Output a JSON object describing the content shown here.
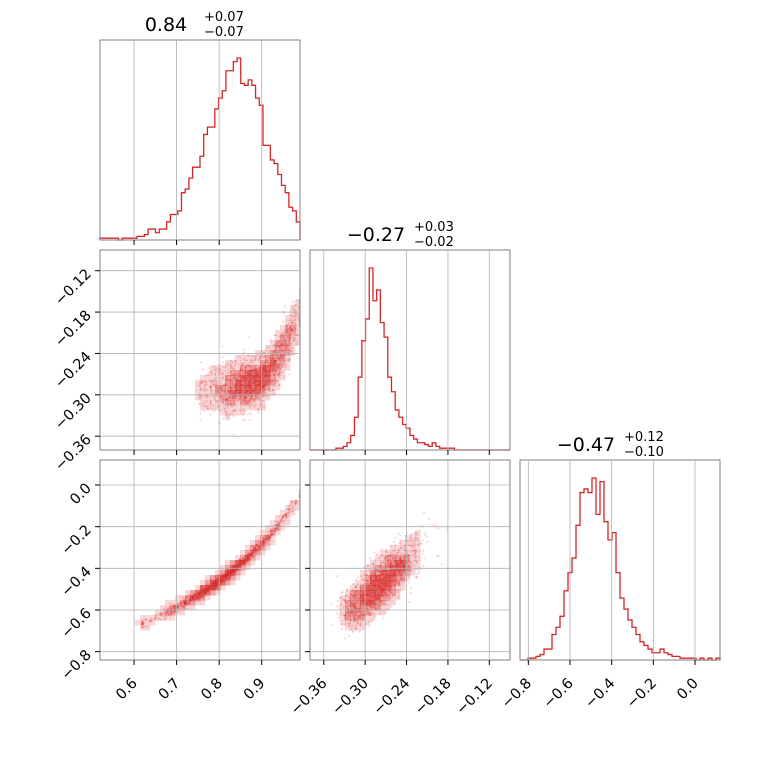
{
  "chart_data": {
    "type": "corner",
    "color": "#d62728",
    "grid": true,
    "parameters": [
      {
        "range": [
          0.52,
          0.99
        ],
        "ticks": [
          0.6,
          0.7,
          0.8,
          0.9
        ],
        "tick_labels": [
          "0.6",
          "0.7",
          "0.8",
          "0.9"
        ],
        "title": {
          "value": "0.84",
          "plus": "+0.07",
          "minus": "−0.07"
        },
        "histogram": {
          "bin_edges": [
            0.52,
            0.99
          ],
          "counts": [
            1,
            1,
            1,
            1,
            1,
            0,
            1,
            1,
            1,
            1,
            2,
            2,
            3,
            6,
            6,
            4,
            6,
            6,
            10,
            14,
            14,
            16,
            26,
            28,
            34,
            40,
            40,
            46,
            58,
            62,
            62,
            72,
            78,
            82,
            93,
            93,
            98,
            100,
            86,
            85,
            88,
            85,
            78,
            74,
            52,
            52,
            44,
            42,
            36,
            30,
            26,
            18,
            16,
            10
          ]
        }
      },
      {
        "range": [
          -0.38,
          -0.09
        ],
        "ticks": [
          -0.36,
          -0.3,
          -0.24,
          -0.18,
          -0.12
        ],
        "tick_labels": [
          "−0.36",
          "−0.30",
          "−0.24",
          "−0.18",
          "−0.12"
        ],
        "title": {
          "value": "−0.27",
          "plus": "+0.03",
          "minus": "−0.02"
        },
        "histogram": {
          "bin_edges": [
            -0.38,
            -0.09
          ],
          "counts": [
            0,
            0,
            0,
            0,
            0,
            0,
            0,
            1,
            1,
            2,
            4,
            8,
            18,
            40,
            60,
            72,
            100,
            82,
            88,
            70,
            62,
            40,
            32,
            22,
            18,
            14,
            12,
            8,
            6,
            4,
            4,
            3,
            2,
            4,
            2,
            1,
            1,
            1,
            1,
            0,
            0,
            0,
            0,
            0,
            0,
            0,
            0,
            0,
            0,
            0,
            0,
            0,
            0,
            0
          ]
        }
      },
      {
        "range": [
          -0.84,
          0.12
        ],
        "ticks": [
          -0.8,
          -0.6,
          -0.4,
          -0.2,
          0.0
        ],
        "tick_labels": [
          "−0.8",
          "−0.6",
          "−0.4",
          "−0.2",
          "0.0"
        ],
        "title": {
          "value": "−0.47",
          "plus": "+0.12",
          "minus": "−0.10"
        },
        "histogram": {
          "bin_edges": [
            -0.84,
            0.12
          ],
          "counts": [
            0,
            0,
            1,
            1,
            2,
            3,
            6,
            6,
            14,
            18,
            24,
            38,
            48,
            56,
            74,
            92,
            94,
            92,
            100,
            80,
            98,
            76,
            66,
            70,
            48,
            34,
            28,
            22,
            18,
            14,
            10,
            8,
            6,
            4,
            4,
            6,
            4,
            3,
            2,
            2,
            1,
            1,
            1,
            1,
            0,
            1,
            0,
            1,
            0,
            1
          ]
        }
      }
    ],
    "pairs": [
      {
        "x_param": 0,
        "y_param": 1,
        "shape": "curved banana: y rises steeply for high x",
        "x_min": 0.71,
        "x_max": 0.99,
        "y_base": -0.29,
        "curvature": 0.09,
        "spread": 0.018
      },
      {
        "x_param": 0,
        "y_param": 2,
        "shape": "thin curved ridge",
        "x_min": 0.62,
        "x_max": 0.99,
        "y_at_xmin": -0.67,
        "y_at_xmax": -0.05,
        "spread": 0.012
      },
      {
        "x_param": 1,
        "y_param": 2,
        "shape": "elongated correlated blob",
        "x_min": -0.31,
        "x_max": -0.2,
        "y_at_xmin": -0.58,
        "y_at_xmax": -0.22,
        "spread": 0.05
      }
    ]
  }
}
